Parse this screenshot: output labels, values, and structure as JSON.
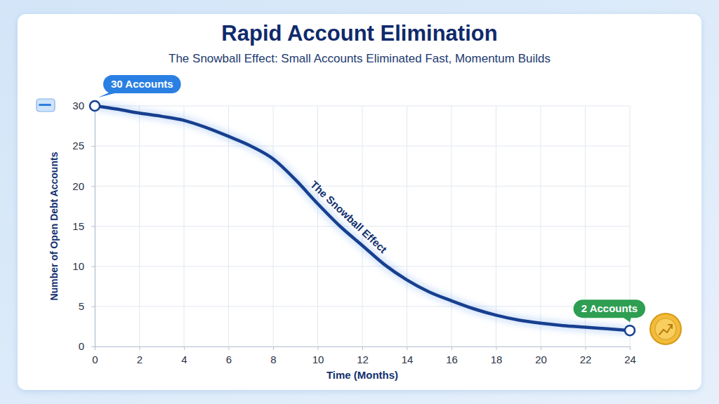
{
  "chart_data": {
    "type": "line",
    "title": "Rapid Account Elimination",
    "subtitle": "The Snowball Effect: Small Accounts Eliminated Fast, Momentum Builds",
    "x_label": "Time (Months)",
    "y_label": "Number of Open Debt Accounts",
    "x": [
      0,
      1,
      2,
      3,
      4,
      5,
      6,
      7,
      8,
      9,
      10,
      11,
      12,
      13,
      14,
      15,
      16,
      17,
      18,
      19,
      20,
      21,
      22,
      23,
      24
    ],
    "values": [
      30,
      29.6,
      29.1,
      28.7,
      28.2,
      27.3,
      26.2,
      25,
      23.4,
      20.8,
      17.8,
      15,
      12.6,
      10.2,
      8.3,
      6.8,
      5.7,
      4.7,
      3.9,
      3.3,
      2.9,
      2.6,
      2.4,
      2.2,
      2
    ],
    "color": "#173f8f",
    "xlim": [
      0,
      24
    ],
    "xticks": [
      0,
      2,
      4,
      6,
      8,
      10,
      12,
      14,
      16,
      18,
      20,
      22,
      24
    ],
    "ylim": [
      0,
      30
    ],
    "yticks": [
      0,
      5,
      10,
      15,
      20,
      25,
      30
    ],
    "grid": true,
    "annotations": [
      {
        "text": "30 Accounts",
        "x": 0,
        "y": 30
      },
      {
        "text": "2 Accounts",
        "x": 24,
        "y": 2
      },
      {
        "text": "The Snowball Effect",
        "x": 11,
        "y": 15
      }
    ]
  }
}
